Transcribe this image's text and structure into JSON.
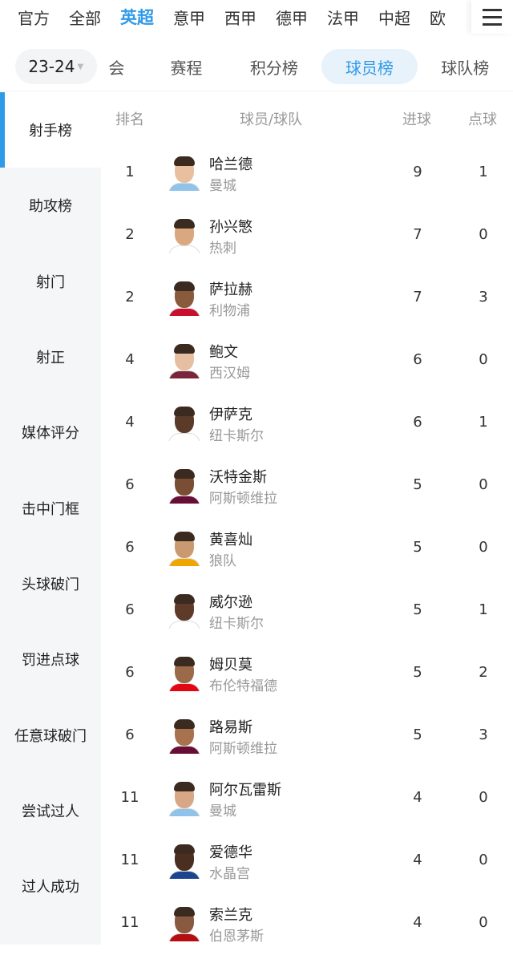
{
  "leagues": [
    "官方",
    "全部",
    "英超",
    "意甲",
    "西甲",
    "德甲",
    "法甲",
    "中超",
    "欧"
  ],
  "active_league": "英超",
  "season": "23-24",
  "tabs": [
    "会",
    "赛程",
    "积分榜",
    "球员榜",
    "球队榜"
  ],
  "active_tab": "球员榜",
  "sidebar": [
    "射手榜",
    "助攻榜",
    "射门",
    "射正",
    "媒体评分",
    "击中门框",
    "头球破门",
    "罚进点球",
    "任意球破门",
    "尝试过人",
    "过人成功"
  ],
  "active_sidebar": "射手榜",
  "headers": {
    "rank": "排名",
    "player": "球员/球队",
    "goals": "进球",
    "penalties": "点球"
  },
  "rows": [
    {
      "rank": "1",
      "name": "哈兰德",
      "team": "曼城",
      "goals": "9",
      "pens": "1"
    },
    {
      "rank": "2",
      "name": "孙兴慜",
      "team": "热刺",
      "goals": "7",
      "pens": "0"
    },
    {
      "rank": "2",
      "name": "萨拉赫",
      "team": "利物浦",
      "goals": "7",
      "pens": "3"
    },
    {
      "rank": "4",
      "name": "鲍文",
      "team": "西汉姆",
      "goals": "6",
      "pens": "0"
    },
    {
      "rank": "4",
      "name": "伊萨克",
      "team": "纽卡斯尔",
      "goals": "6",
      "pens": "1"
    },
    {
      "rank": "6",
      "name": "沃特金斯",
      "team": "阿斯顿维拉",
      "goals": "5",
      "pens": "0"
    },
    {
      "rank": "6",
      "name": "黄喜灿",
      "team": "狼队",
      "goals": "5",
      "pens": "0"
    },
    {
      "rank": "6",
      "name": "威尔逊",
      "team": "纽卡斯尔",
      "goals": "5",
      "pens": "1"
    },
    {
      "rank": "6",
      "name": "姆贝莫",
      "team": "布伦特福德",
      "goals": "5",
      "pens": "2"
    },
    {
      "rank": "6",
      "name": "路易斯",
      "team": "阿斯顿维拉",
      "goals": "5",
      "pens": "3"
    },
    {
      "rank": "11",
      "name": "阿尔瓦雷斯",
      "team": "曼城",
      "goals": "4",
      "pens": "0"
    },
    {
      "rank": "11",
      "name": "爱德华",
      "team": "水晶宫",
      "goals": "4",
      "pens": "0"
    },
    {
      "rank": "11",
      "name": "索兰克",
      "team": "伯恩茅斯",
      "goals": "4",
      "pens": "0"
    }
  ],
  "colors": {
    "accent": "#2f9ae8",
    "sidebar_bg": "#f5f6f8"
  }
}
